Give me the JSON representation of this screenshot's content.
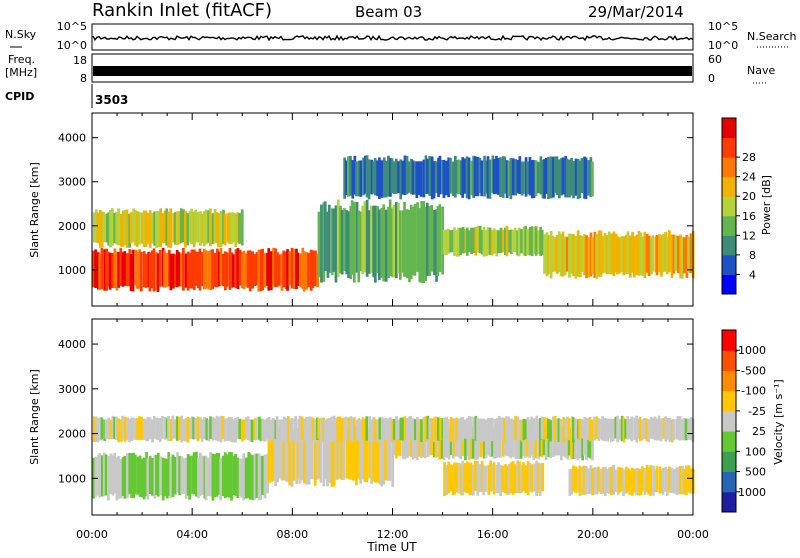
{
  "header": {
    "station": "Rankin Inlet (fitACF)",
    "beam": "Beam 03",
    "date": "29/Mar/2014"
  },
  "strip_labels": {
    "nsky": "N.Sky",
    "nsky_ticks": [
      "10^5",
      "10^0"
    ],
    "nsearch": "N.Search",
    "nsearch_ticks": [
      "10^5",
      "10^0"
    ],
    "freq_line1": "Freq.",
    "freq_line2": "[MHz]",
    "freq_ticks": [
      "18",
      "8"
    ],
    "nave": "Nave",
    "nave_ticks": [
      "60",
      "0"
    ],
    "cpid_label": "CPID",
    "cpid_value": "3503"
  },
  "x_axis": {
    "label": "Time UT",
    "tick_labels": [
      "00:00",
      "04:00",
      "08:00",
      "12:00",
      "16:00",
      "20:00",
      "00:00"
    ],
    "range_hours": [
      0,
      24
    ]
  },
  "y_axis": {
    "label": "Slant Range [km]",
    "tick_labels": [
      "1000",
      "2000",
      "3000",
      "4000"
    ],
    "tick_values": [
      1000,
      2000,
      3000,
      4000
    ],
    "range_km": [
      180,
      4560
    ]
  },
  "colors": {
    "power": [
      "#0000ff",
      "#1e50c8",
      "#3c8c78",
      "#64b450",
      "#b4d23c",
      "#f0b400",
      "#ff7800",
      "#ff3c00",
      "#e60000"
    ],
    "velocity": [
      "#ff0000",
      "#ff5000",
      "#ff8c00",
      "#ffc800",
      "#c8c8c8",
      "#64c832",
      "#3ca050",
      "#2864b4",
      "#1e1ea0"
    ]
  },
  "chart_data": [
    {
      "type": "heatmap",
      "title": "Power",
      "colorbar_label": "Power [dB]",
      "colorbar_ticks": [
        "4",
        "8",
        "12",
        "16",
        "20",
        "24",
        "28"
      ],
      "colorbar_range": [
        0,
        30
      ],
      "x": [
        "00:00",
        "04:00",
        "08:00",
        "12:00",
        "16:00",
        "20:00",
        "00:00"
      ],
      "xlabel": "Time UT",
      "ylabel": "Slant Range [km]",
      "ylim": [
        180,
        4560
      ],
      "echo_regions": [
        {
          "hours": [
            0,
            9
          ],
          "km": [
            500,
            1500
          ],
          "value_db": 26
        },
        {
          "hours": [
            0,
            6
          ],
          "km": [
            1500,
            2400
          ],
          "value_db": 16
        },
        {
          "hours": [
            9,
            14
          ],
          "km": [
            700,
            2600
          ],
          "value_db": 10
        },
        {
          "hours": [
            14,
            18
          ],
          "km": [
            1300,
            2000
          ],
          "value_db": 14
        },
        {
          "hours": [
            18,
            24
          ],
          "km": [
            800,
            1900
          ],
          "value_db": 18
        },
        {
          "hours": [
            10,
            20
          ],
          "km": [
            2600,
            3600
          ],
          "value_db": 6
        }
      ]
    },
    {
      "type": "heatmap",
      "title": "Velocity",
      "colorbar_label": "Velocity [m s⁻¹]",
      "colorbar_ticks": [
        "-1000",
        "-500",
        "-100",
        "-25",
        "25",
        "100",
        "500",
        "1000"
      ],
      "colorbar_range": [
        -1500,
        1500
      ],
      "x": [
        "00:00",
        "04:00",
        "08:00",
        "12:00",
        "16:00",
        "20:00",
        "00:00"
      ],
      "xlabel": "Time UT",
      "ylabel": "Slant Range [km]",
      "ylim": [
        180,
        4560
      ],
      "echo_regions": [
        {
          "hours": [
            0,
            7
          ],
          "km": [
            500,
            1600
          ],
          "value_ms": 250
        },
        {
          "hours": [
            7,
            12
          ],
          "km": [
            800,
            2200
          ],
          "value_ms": -250
        },
        {
          "hours": [
            12,
            20
          ],
          "km": [
            1400,
            2200
          ],
          "value_ms": 0
        },
        {
          "hours": [
            14,
            18
          ],
          "km": [
            600,
            1400
          ],
          "value_ms": -250
        },
        {
          "hours": [
            19,
            24
          ],
          "km": [
            600,
            1300
          ],
          "value_ms": -250
        },
        {
          "hours": [
            0,
            24
          ],
          "km": [
            1800,
            2400
          ],
          "value_ms": 0
        }
      ]
    }
  ]
}
